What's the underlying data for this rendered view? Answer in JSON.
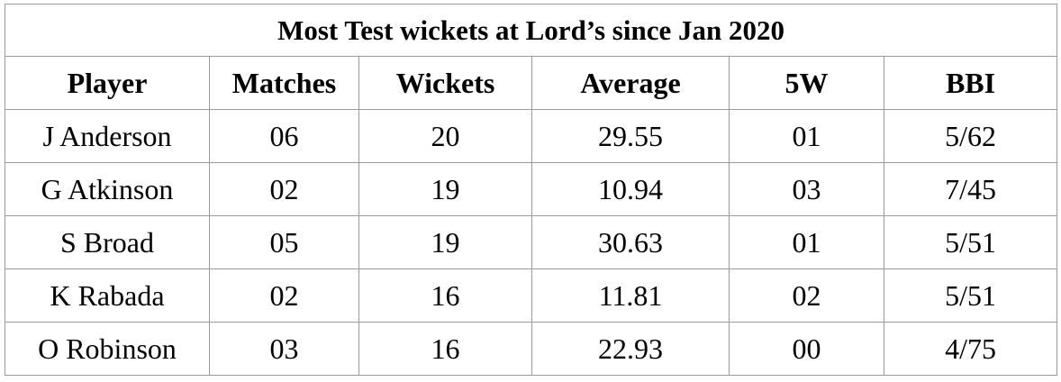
{
  "table": {
    "title": "Most Test wickets at Lord’s since Jan 2020",
    "headers": [
      "Player",
      "Matches",
      "Wickets",
      "Average",
      "5W",
      "BBI"
    ],
    "rows": [
      [
        "J Anderson",
        "06",
        "20",
        "29.55",
        "01",
        "5/62"
      ],
      [
        "G Atkinson",
        "02",
        "19",
        "10.94",
        "03",
        "7/45"
      ],
      [
        "S Broad",
        "05",
        "19",
        "30.63",
        "01",
        "5/51"
      ],
      [
        "K Rabada",
        "02",
        "16",
        "11.81",
        "02",
        "5/51"
      ],
      [
        "O Robinson",
        "03",
        "16",
        "22.93",
        "00",
        "4/75"
      ]
    ]
  }
}
